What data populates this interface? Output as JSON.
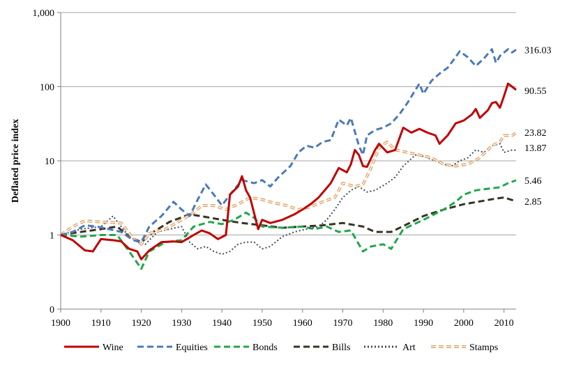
{
  "chart_data": {
    "type": "line",
    "title": "",
    "xlabel": "",
    "ylabel": "Deflated price index",
    "y_scale": "log",
    "xlim": [
      1900,
      2013
    ],
    "x_ticks": [
      1900,
      1910,
      1920,
      1930,
      1940,
      1950,
      1960,
      1970,
      1980,
      1990,
      2000,
      2010
    ],
    "y_ticks": [
      {
        "value": 0.1,
        "label": "0"
      },
      {
        "value": 1,
        "label": "1"
      },
      {
        "value": 10,
        "label": "10"
      },
      {
        "value": 100,
        "label": "100"
      },
      {
        "value": 1000,
        "label": "1,000"
      }
    ],
    "gridlines": "horizontal",
    "legend_position": "bottom",
    "series": [
      {
        "name": "Wine",
        "color": "#c00000",
        "dash": "solid",
        "end_label": "90.55",
        "points": [
          [
            1900,
            1
          ],
          [
            1903,
            0.85
          ],
          [
            1906,
            0.62
          ],
          [
            1908,
            0.6
          ],
          [
            1910,
            0.88
          ],
          [
            1913,
            0.85
          ],
          [
            1915,
            0.82
          ],
          [
            1917,
            0.65
          ],
          [
            1919,
            0.6
          ],
          [
            1920,
            0.47
          ],
          [
            1922,
            0.62
          ],
          [
            1925,
            0.8
          ],
          [
            1928,
            0.82
          ],
          [
            1930,
            0.8
          ],
          [
            1933,
            1.0
          ],
          [
            1935,
            1.15
          ],
          [
            1937,
            1.05
          ],
          [
            1939,
            0.88
          ],
          [
            1941,
            1.0
          ],
          [
            1942,
            3.5
          ],
          [
            1944,
            4.5
          ],
          [
            1945,
            6.2
          ],
          [
            1946,
            4.0
          ],
          [
            1947,
            3.2
          ],
          [
            1949,
            1.2
          ],
          [
            1950,
            1.6
          ],
          [
            1952,
            1.45
          ],
          [
            1955,
            1.6
          ],
          [
            1958,
            1.9
          ],
          [
            1960,
            2.2
          ],
          [
            1962,
            2.6
          ],
          [
            1964,
            3.2
          ],
          [
            1967,
            5
          ],
          [
            1969,
            8
          ],
          [
            1971,
            7
          ],
          [
            1972,
            9
          ],
          [
            1973,
            14
          ],
          [
            1974,
            12
          ],
          [
            1975,
            8.5
          ],
          [
            1976,
            8.3
          ],
          [
            1978,
            14
          ],
          [
            1979,
            17
          ],
          [
            1981,
            13
          ],
          [
            1983,
            14
          ],
          [
            1985,
            28
          ],
          [
            1987,
            24
          ],
          [
            1989,
            27
          ],
          [
            1991,
            24
          ],
          [
            1993,
            22
          ],
          [
            1994,
            17
          ],
          [
            1996,
            22
          ],
          [
            1998,
            32
          ],
          [
            2000,
            35
          ],
          [
            2002,
            42
          ],
          [
            2003,
            50
          ],
          [
            2004,
            38
          ],
          [
            2006,
            48
          ],
          [
            2007,
            60
          ],
          [
            2008,
            62
          ],
          [
            2009,
            52
          ],
          [
            2010,
            75
          ],
          [
            2011,
            110
          ],
          [
            2012,
            100
          ],
          [
            2013,
            90.55
          ]
        ]
      },
      {
        "name": "Equities",
        "color": "#4a7ab8",
        "dash": "long-dash",
        "end_label": "316.03",
        "points": [
          [
            1900,
            1
          ],
          [
            1903,
            1.1
          ],
          [
            1906,
            1.35
          ],
          [
            1909,
            1.3
          ],
          [
            1912,
            1.2
          ],
          [
            1915,
            1.1
          ],
          [
            1918,
            0.85
          ],
          [
            1920,
            0.8
          ],
          [
            1922,
            1.3
          ],
          [
            1925,
            1.8
          ],
          [
            1928,
            2.8
          ],
          [
            1930,
            2.2
          ],
          [
            1932,
            1.8
          ],
          [
            1934,
            3.0
          ],
          [
            1936,
            4.8
          ],
          [
            1938,
            3.5
          ],
          [
            1940,
            2.5
          ],
          [
            1942,
            3.5
          ],
          [
            1945,
            5.5
          ],
          [
            1948,
            5.0
          ],
          [
            1950,
            5.5
          ],
          [
            1952,
            4.5
          ],
          [
            1954,
            6.0
          ],
          [
            1957,
            8.5
          ],
          [
            1959,
            13
          ],
          [
            1961,
            16
          ],
          [
            1963,
            15
          ],
          [
            1965,
            18
          ],
          [
            1967,
            19
          ],
          [
            1969,
            36
          ],
          [
            1971,
            30
          ],
          [
            1972,
            38
          ],
          [
            1974,
            16
          ],
          [
            1975,
            12
          ],
          [
            1976,
            22
          ],
          [
            1978,
            26
          ],
          [
            1980,
            28
          ],
          [
            1982,
            32
          ],
          [
            1984,
            42
          ],
          [
            1986,
            60
          ],
          [
            1988,
            90
          ],
          [
            1989,
            110
          ],
          [
            1990,
            80
          ],
          [
            1992,
            120
          ],
          [
            1994,
            150
          ],
          [
            1996,
            180
          ],
          [
            1998,
            250
          ],
          [
            1999,
            300
          ],
          [
            2001,
            250
          ],
          [
            2003,
            190
          ],
          [
            2005,
            240
          ],
          [
            2007,
            320
          ],
          [
            2008,
            210
          ],
          [
            2009,
            260
          ],
          [
            2011,
            320
          ],
          [
            2012,
            290
          ],
          [
            2013,
            316.03
          ]
        ]
      },
      {
        "name": "Bonds",
        "color": "#1ea84a",
        "dash": "long-dash",
        "end_label": "5.46",
        "points": [
          [
            1900,
            1
          ],
          [
            1905,
            0.95
          ],
          [
            1910,
            1.0
          ],
          [
            1914,
            1.0
          ],
          [
            1917,
            0.6
          ],
          [
            1919,
            0.42
          ],
          [
            1920,
            0.35
          ],
          [
            1922,
            0.6
          ],
          [
            1926,
            0.8
          ],
          [
            1930,
            0.85
          ],
          [
            1933,
            1.3
          ],
          [
            1937,
            1.5
          ],
          [
            1940,
            1.4
          ],
          [
            1943,
            1.6
          ],
          [
            1946,
            2.0
          ],
          [
            1948,
            1.7
          ],
          [
            1950,
            1.3
          ],
          [
            1955,
            1.25
          ],
          [
            1960,
            1.3
          ],
          [
            1963,
            1.2
          ],
          [
            1966,
            1.3
          ],
          [
            1969,
            1.1
          ],
          [
            1972,
            1.15
          ],
          [
            1975,
            0.6
          ],
          [
            1977,
            0.7
          ],
          [
            1980,
            0.75
          ],
          [
            1982,
            0.65
          ],
          [
            1985,
            1.2
          ],
          [
            1990,
            1.6
          ],
          [
            1995,
            2.2
          ],
          [
            1998,
            2.8
          ],
          [
            2000,
            3.5
          ],
          [
            2003,
            4.0
          ],
          [
            2006,
            4.2
          ],
          [
            2009,
            4.4
          ],
          [
            2011,
            5.0
          ],
          [
            2013,
            5.46
          ]
        ]
      },
      {
        "name": "Bills",
        "color": "#3a3324",
        "dash": "long-dash",
        "end_label": "2.85",
        "points": [
          [
            1900,
            1
          ],
          [
            1905,
            1.1
          ],
          [
            1910,
            1.2
          ],
          [
            1914,
            1.3
          ],
          [
            1917,
            0.95
          ],
          [
            1920,
            0.8
          ],
          [
            1923,
            1.1
          ],
          [
            1927,
            1.5
          ],
          [
            1932,
            1.9
          ],
          [
            1936,
            1.75
          ],
          [
            1940,
            1.6
          ],
          [
            1945,
            1.45
          ],
          [
            1950,
            1.35
          ],
          [
            1955,
            1.25
          ],
          [
            1960,
            1.3
          ],
          [
            1965,
            1.35
          ],
          [
            1970,
            1.45
          ],
          [
            1975,
            1.3
          ],
          [
            1978,
            1.1
          ],
          [
            1982,
            1.1
          ],
          [
            1986,
            1.4
          ],
          [
            1990,
            1.8
          ],
          [
            1995,
            2.2
          ],
          [
            2000,
            2.6
          ],
          [
            2005,
            2.9
          ],
          [
            2008,
            3.1
          ],
          [
            2010,
            3.2
          ],
          [
            2013,
            2.85
          ]
        ]
      },
      {
        "name": "Art",
        "color": "#404a5a",
        "dash": "dotted",
        "end_label": "13.87",
        "points": [
          [
            1900,
            1
          ],
          [
            1905,
            1.2
          ],
          [
            1910,
            1.3
          ],
          [
            1913,
            1.8
          ],
          [
            1916,
            1.1
          ],
          [
            1919,
            0.8
          ],
          [
            1921,
            0.75
          ],
          [
            1924,
            1.1
          ],
          [
            1927,
            1.2
          ],
          [
            1930,
            1.3
          ],
          [
            1932,
            0.8
          ],
          [
            1934,
            0.65
          ],
          [
            1936,
            0.7
          ],
          [
            1938,
            0.6
          ],
          [
            1940,
            0.55
          ],
          [
            1942,
            0.6
          ],
          [
            1944,
            0.75
          ],
          [
            1946,
            0.8
          ],
          [
            1948,
            0.8
          ],
          [
            1950,
            0.65
          ],
          [
            1952,
            0.7
          ],
          [
            1955,
            0.95
          ],
          [
            1958,
            1.1
          ],
          [
            1961,
            1.2
          ],
          [
            1964,
            1.3
          ],
          [
            1966,
            1.6
          ],
          [
            1968,
            2.2
          ],
          [
            1970,
            3.2
          ],
          [
            1972,
            4.0
          ],
          [
            1974,
            4.5
          ],
          [
            1976,
            3.8
          ],
          [
            1978,
            4.0
          ],
          [
            1981,
            5.0
          ],
          [
            1983,
            6.0
          ],
          [
            1985,
            8.5
          ],
          [
            1988,
            12
          ],
          [
            1990,
            11.5
          ],
          [
            1993,
            10
          ],
          [
            1995,
            9
          ],
          [
            1997,
            8.5
          ],
          [
            1999,
            10
          ],
          [
            2001,
            11
          ],
          [
            2003,
            14
          ],
          [
            2005,
            13
          ],
          [
            2007,
            16
          ],
          [
            2009,
            17
          ],
          [
            2010,
            13
          ],
          [
            2012,
            14
          ],
          [
            2013,
            13.87
          ]
        ]
      },
      {
        "name": "Stamps",
        "color": "#e0a060",
        "dash": "double-dash",
        "end_label": "23.82",
        "points": [
          [
            1900,
            1
          ],
          [
            1903,
            1.3
          ],
          [
            1906,
            1.55
          ],
          [
            1910,
            1.5
          ],
          [
            1915,
            1.45
          ],
          [
            1918,
            0.9
          ],
          [
            1920,
            0.75
          ],
          [
            1922,
            1.05
          ],
          [
            1926,
            1.2
          ],
          [
            1930,
            1.6
          ],
          [
            1933,
            2.0
          ],
          [
            1935,
            2.5
          ],
          [
            1938,
            2.5
          ],
          [
            1941,
            2.2
          ],
          [
            1944,
            2.6
          ],
          [
            1947,
            3.2
          ],
          [
            1950,
            3.0
          ],
          [
            1953,
            2.7
          ],
          [
            1956,
            2.5
          ],
          [
            1959,
            2.2
          ],
          [
            1962,
            2.4
          ],
          [
            1965,
            2.8
          ],
          [
            1968,
            3.2
          ],
          [
            1970,
            5
          ],
          [
            1973,
            4.5
          ],
          [
            1975,
            4.8
          ],
          [
            1977,
            8
          ],
          [
            1979,
            15
          ],
          [
            1981,
            18
          ],
          [
            1983,
            14
          ],
          [
            1986,
            13
          ],
          [
            1989,
            12
          ],
          [
            1992,
            11
          ],
          [
            1995,
            9
          ],
          [
            1998,
            8.5
          ],
          [
            2001,
            9
          ],
          [
            2004,
            11
          ],
          [
            2007,
            16
          ],
          [
            2009,
            18
          ],
          [
            2010,
            22
          ],
          [
            2012,
            22
          ],
          [
            2013,
            23.82
          ]
        ]
      }
    ]
  }
}
